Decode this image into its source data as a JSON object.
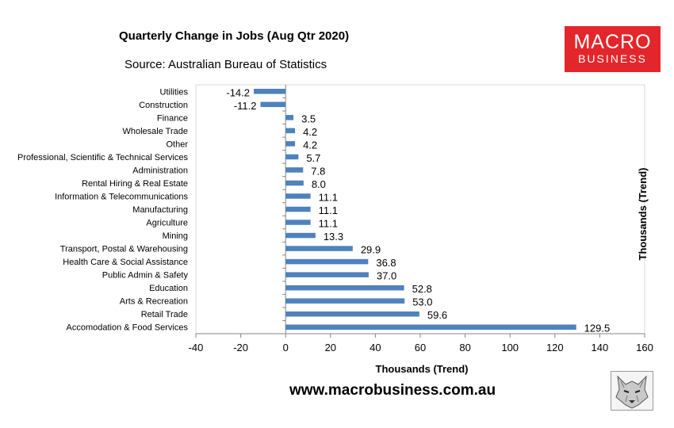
{
  "header": {
    "title": "Quarterly Change in Jobs (Aug Qtr 2020)",
    "source": "Source: Australian Bureau of Statistics"
  },
  "logo": {
    "line1": "MACRO",
    "line2": "BUSINESS",
    "color": "#e3262b"
  },
  "footer": {
    "website": "www.macrobusiness.com.au"
  },
  "mascot": {
    "icon": "wolf-icon"
  },
  "chart_data": {
    "type": "bar",
    "orientation": "horizontal",
    "title": "Quarterly Change in Jobs (Aug Qtr 2020)",
    "xlabel": "Thousands (Trend)",
    "ylabel_right": "Thousands (Trend)",
    "xlim": [
      -40,
      160
    ],
    "xticks": [
      -40,
      -20,
      0,
      20,
      40,
      60,
      80,
      100,
      120,
      140,
      160
    ],
    "bar_color": "#4f81bd",
    "categories": [
      "Utilities",
      "Construction",
      "Finance",
      "Wholesale Trade",
      "Other",
      "Professional, Scientific & Technical Services",
      "Administration",
      "Rental Hiring & Real Estate",
      "Information & Telecommunications",
      "Manufacturing",
      "Agriculture",
      "Mining",
      "Transport, Postal & Warehousing",
      "Health Care & Social Assistance",
      "Public Admin & Safety",
      "Education",
      "Arts & Recreation",
      "Retail Trade",
      "Accomodation & Food Services"
    ],
    "values": [
      -14.2,
      -11.2,
      3.5,
      4.2,
      4.2,
      5.7,
      7.8,
      8.0,
      11.1,
      11.1,
      11.1,
      13.3,
      29.9,
      36.8,
      37.0,
      52.8,
      53.0,
      59.6,
      129.5
    ],
    "labels": [
      "-14.2",
      "-11.2",
      "3.5",
      "4.2",
      "4.2",
      "5.7",
      "7.8",
      "8.0",
      "11.1",
      "11.1",
      "11.1",
      "13.3",
      "29.9",
      "36.8",
      "37.0",
      "52.8",
      "53.0",
      "59.6",
      "129.5"
    ]
  }
}
